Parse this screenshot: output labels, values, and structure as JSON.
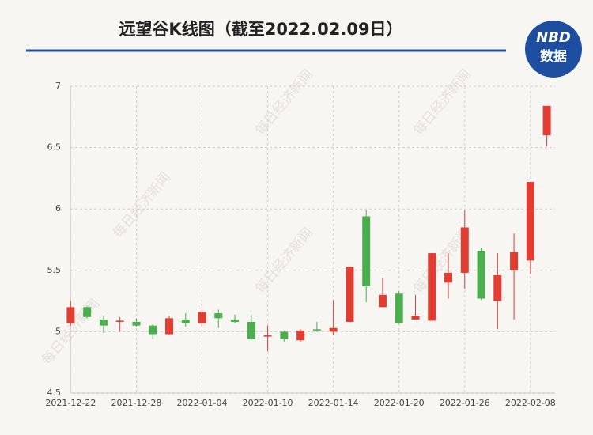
{
  "chart_data": {
    "type": "candlestick",
    "title": "远望谷K线图（截至2022.02.09日）",
    "logo": {
      "top": "NBD",
      "bottom": "数据"
    },
    "watermark": "每日经济新闻",
    "categories": [
      "2021-12-22",
      null,
      null,
      null,
      "2021-12-28",
      null,
      null,
      null,
      "2022-01-04",
      null,
      null,
      null,
      "2022-01-10",
      null,
      null,
      null,
      "2022-01-14",
      null,
      null,
      null,
      "2022-01-20",
      null,
      null,
      null,
      "2022-01-26",
      null,
      null,
      null,
      "2022-02-08",
      null
    ],
    "open": [
      5.07,
      5.2,
      5.1,
      5.08,
      5.08,
      5.05,
      4.98,
      5.1,
      5.07,
      5.15,
      5.1,
      5.08,
      4.96,
      5.0,
      4.93,
      5.02,
      5.0,
      5.08,
      5.94,
      5.2,
      5.31,
      5.1,
      5.09,
      5.4,
      5.48,
      5.66,
      5.25,
      5.5,
      5.58,
      6.6
    ],
    "high": [
      5.25,
      5.21,
      5.13,
      5.12,
      5.11,
      5.06,
      5.13,
      5.15,
      5.22,
      5.18,
      5.14,
      5.14,
      5.05,
      5.01,
      5.02,
      5.08,
      5.26,
      5.53,
      5.99,
      5.44,
      5.33,
      5.3,
      5.64,
      5.64,
      5.99,
      5.68,
      5.64,
      5.8,
      6.22,
      6.84
    ],
    "low": [
      5.05,
      5.11,
      4.99,
      5.0,
      5.04,
      4.94,
      4.97,
      5.04,
      5.04,
      5.03,
      5.07,
      4.93,
      4.84,
      4.92,
      4.92,
      5.0,
      4.97,
      5.08,
      5.24,
      5.2,
      5.06,
      5.1,
      5.09,
      5.27,
      5.35,
      5.26,
      5.02,
      5.1,
      5.47,
      6.51
    ],
    "close": [
      5.2,
      5.12,
      5.05,
      5.09,
      5.05,
      4.98,
      5.11,
      5.07,
      5.16,
      5.11,
      5.08,
      4.94,
      4.97,
      4.94,
      5.01,
      5.01,
      5.03,
      5.53,
      5.37,
      5.3,
      5.07,
      5.13,
      5.64,
      5.48,
      5.85,
      5.27,
      5.46,
      5.65,
      6.22,
      6.84
    ],
    "up_color": "#e23d33",
    "down_color": "#4cae4f",
    "ylim": [
      4.5,
      7
    ],
    "yticks": [
      4.5,
      5,
      5.5,
      6,
      6.5,
      7
    ],
    "grid": true
  }
}
